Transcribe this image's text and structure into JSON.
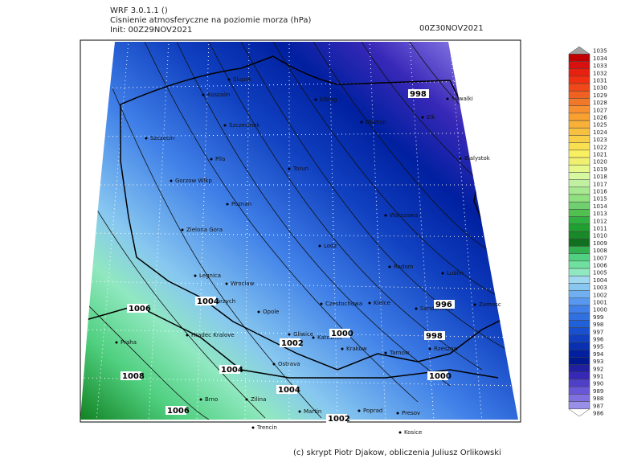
{
  "header": {
    "model": "WRF 3.0.1.1 ()",
    "title": "Cisnienie atmosferyczne na poziomie morza (hPa)",
    "init": "Init: 00Z29NOV2021",
    "valid": "00Z30NOV2021"
  },
  "cities": [
    "Slupsk",
    "Koszalin",
    "Szczecinek",
    "Szczecin",
    "Pila",
    "Elblag",
    "Torun",
    "Olsztyn",
    "Elk",
    "Suwalki",
    "Bialystok",
    "Gorzow Wlkp",
    "Poznan",
    "Zielona Gora",
    "Warszawa",
    "Lodz",
    "Radom",
    "Lublin",
    "Legnica",
    "Wroclaw",
    "Walbrzych",
    "Opole",
    "Czestochowa",
    "Kielce",
    "Sandomierz",
    "Zamosc",
    "Hradec Kralove",
    "Gliwice",
    "Katowice",
    "Krakow",
    "Tarnow",
    "Rzeszow",
    "Praha",
    "Ostrava",
    "Zilina",
    "Brno",
    "Martin",
    "Poprad",
    "Presov",
    "Kosice",
    "Trencin"
  ],
  "contour_labels": [
    "998",
    "1006",
    "1004",
    "1000",
    "1002",
    "998",
    "996",
    "1008",
    "1004",
    "1004",
    "1006",
    "1000",
    "1002"
  ],
  "legend": {
    "levels": [
      1035,
      1034,
      1033,
      1032,
      1031,
      1030,
      1029,
      1028,
      1027,
      1026,
      1025,
      1024,
      1023,
      1022,
      1021,
      1020,
      1019,
      1018,
      1017,
      1016,
      1015,
      1014,
      1013,
      1012,
      1011,
      1010,
      1009,
      1008,
      1007,
      1006,
      1005,
      1004,
      1003,
      1002,
      1001,
      1000,
      999,
      998,
      997,
      996,
      995,
      994,
      993,
      992,
      991,
      990,
      989,
      988,
      987,
      986
    ],
    "colors": [
      "#a0a0a0",
      "#c00000",
      "#d81010",
      "#e82010",
      "#f03010",
      "#f04818",
      "#f06020",
      "#f07828",
      "#f89030",
      "#f8a030",
      "#f8b038",
      "#f8c040",
      "#f8d048",
      "#f8e050",
      "#f8f060",
      "#f0f070",
      "#e8f888",
      "#d8f8a0",
      "#c0f0a0",
      "#a8e890",
      "#90e080",
      "#70d070",
      "#50c050",
      "#30b040",
      "#20a030",
      "#188828",
      "#107020",
      "#30b050",
      "#50d080",
      "#70e0a0",
      "#90e8c0",
      "#a0d8f0",
      "#88c8f0",
      "#70b0f0",
      "#5898f0",
      "#4080e8",
      "#3070e0",
      "#2060d8",
      "#1850d0",
      "#1040c0",
      "#0830b0",
      "#0020a0",
      "#001890",
      "#2020a0",
      "#3828b8",
      "#5040c8",
      "#6858d8",
      "#8070e0",
      "#9890e8",
      "#ffffff"
    ]
  },
  "footer": "(c) skrypt Piotr Djakow, obliczenia Juliusz Orlikowski"
}
